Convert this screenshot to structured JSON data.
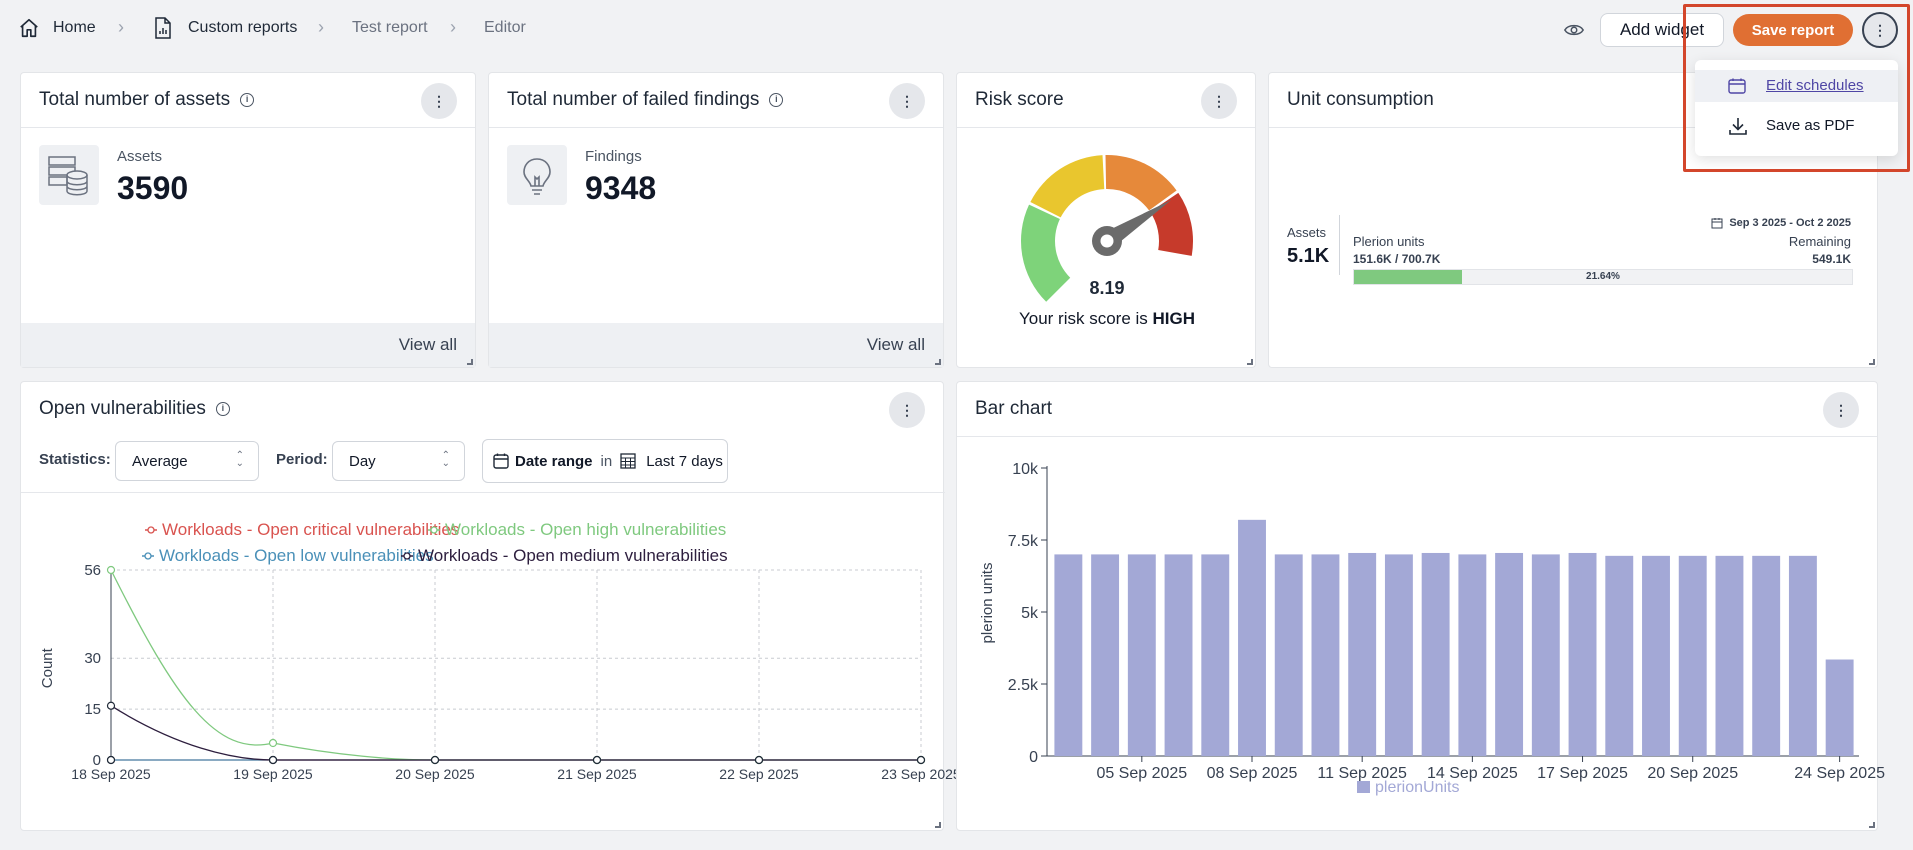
{
  "breadcrumb": {
    "home": "Home",
    "custom_reports": "Custom reports",
    "test_report": "Test report",
    "editor": "Editor"
  },
  "toolbar": {
    "add_widget": "Add widget",
    "save_report": "Save report"
  },
  "menu": {
    "edit_schedules": "Edit schedules",
    "save_as_pdf": "Save as PDF"
  },
  "assets_card": {
    "title": "Total number of assets",
    "label": "Assets",
    "value": "3590",
    "view_all": "View all"
  },
  "findings_card": {
    "title": "Total number of failed findings",
    "label": "Findings",
    "value": "9348",
    "view_all": "View all"
  },
  "risk_card": {
    "title": "Risk score",
    "score": "8.19",
    "caption_prefix": "Your risk score is ",
    "caption_level": "HIGH",
    "score_value": 8.19,
    "score_max": 10
  },
  "unit_card": {
    "title": "Unit consumption",
    "assets_label": "Assets",
    "assets_value": "5.1K",
    "date_range": "Sep 3 2025 - Oct 2 2025",
    "units_label": "Plerion units",
    "units_value": "151.6K / 700.7K",
    "remaining_label": "Remaining",
    "remaining_value": "549.1K",
    "percent_text": "21.64%",
    "percent": 21.64
  },
  "vuln_card": {
    "title": "Open vulnerabilities",
    "statistics_label": "Statistics:",
    "statistics_value": "Average",
    "period_label": "Period:",
    "period_value": "Day",
    "date_range_label": "Date range",
    "date_range_in": "in",
    "date_range_value": "Last 7 days"
  },
  "bar_card": {
    "title": "Bar chart"
  },
  "colors": {
    "critical": "#d9534f",
    "high": "#7fc97f",
    "low": "#4a90b8",
    "medium": "#2d1e3e",
    "bar": "#a3a8d6",
    "accent": "#e06f33"
  },
  "chart_data": [
    {
      "type": "line",
      "title": "",
      "xlabel": "",
      "ylabel": "Count",
      "x": [
        "18 Sep 2025",
        "19 Sep 2025",
        "20 Sep 2025",
        "21 Sep 2025",
        "22 Sep 2025",
        "23 Sep 2025"
      ],
      "yticks": [
        0,
        15,
        30,
        56
      ],
      "ylim": [
        0,
        56
      ],
      "grid": true,
      "legend": "top",
      "series": [
        {
          "name": "Workloads - Open critical vulnerabilities",
          "values": [
            0,
            0,
            0,
            0,
            0,
            0
          ]
        },
        {
          "name": "Workloads - Open high vulnerabilities",
          "values": [
            56,
            5,
            0,
            0,
            0,
            0
          ]
        },
        {
          "name": "Workloads - Open low vulnerabilities",
          "values": [
            0,
            0,
            0,
            0,
            0,
            0
          ]
        },
        {
          "name": "Workloads - Open medium vulnerabilities",
          "values": [
            16,
            0,
            0,
            0,
            0,
            0
          ]
        }
      ]
    },
    {
      "type": "bar",
      "title": "",
      "xlabel": "",
      "ylabel": "plerion units",
      "categories": [
        "03 Sep 2025",
        "04 Sep 2025",
        "05 Sep 2025",
        "06 Sep 2025",
        "07 Sep 2025",
        "08 Sep 2025",
        "09 Sep 2025",
        "10 Sep 2025",
        "11 Sep 2025",
        "12 Sep 2025",
        "13 Sep 2025",
        "14 Sep 2025",
        "15 Sep 2025",
        "16 Sep 2025",
        "17 Sep 2025",
        "18 Sep 2025",
        "19 Sep 2025",
        "20 Sep 2025",
        "21 Sep 2025",
        "22 Sep 2025",
        "23 Sep 2025",
        "24 Sep 2025"
      ],
      "xtick_labels": [
        "05 Sep 2025",
        "08 Sep 2025",
        "11 Sep 2025",
        "14 Sep 2025",
        "17 Sep 2025",
        "20 Sep 2025",
        "24 Sep 2025"
      ],
      "xtick_index": [
        2,
        5,
        8,
        11,
        14,
        17,
        21
      ],
      "series": [
        {
          "name": "plerionUnits",
          "values": [
            7000,
            7000,
            7000,
            7000,
            7000,
            8200,
            7000,
            7000,
            7050,
            7000,
            7050,
            7000,
            7050,
            7000,
            7050,
            6950,
            6950,
            6950,
            6950,
            6950,
            6950,
            3350
          ]
        }
      ],
      "yticks": [
        "0",
        "2.5k",
        "5k",
        "7.5k",
        "10k"
      ],
      "ytick_values": [
        0,
        2500,
        5000,
        7500,
        10000
      ],
      "ylim": [
        0,
        10000
      ],
      "legend": "bottom"
    }
  ]
}
